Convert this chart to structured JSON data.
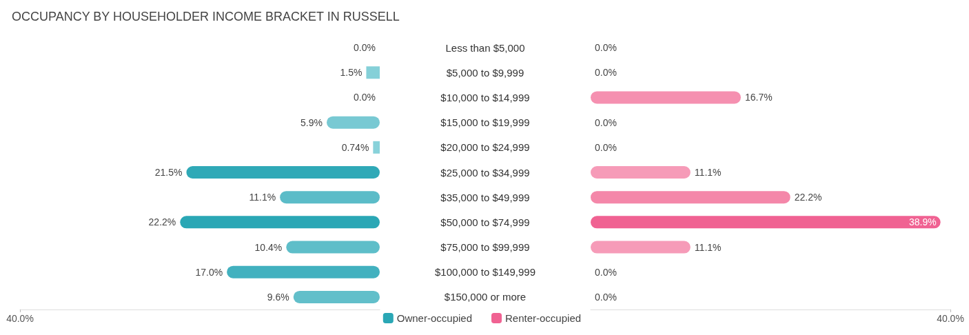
{
  "chart_data": [
    {
      "type": "bar",
      "orientation": "horizontal",
      "title": "OCCUPANCY BY HOUSEHOLDER INCOME BRACKET IN RUSSELL",
      "categories": [
        "Less than $5,000",
        "$5,000 to $9,999",
        "$10,000 to $14,999",
        "$15,000 to $19,999",
        "$20,000 to $24,999",
        "$25,000 to $34,999",
        "$35,000 to $49,999",
        "$50,000 to $74,999",
        "$75,000 to $99,999",
        "$100,000 to $149,999",
        "$150,000 or more"
      ],
      "series": [
        {
          "name": "Owner-occupied",
          "color": "#2aa7b5",
          "values": [
            0,
            1.5,
            0,
            5.9,
            0.74,
            21.5,
            11.1,
            22.2,
            10.4,
            17.0,
            9.6
          ],
          "value_labels": [
            "0.0%",
            "1.5%",
            "0.0%",
            "5.9%",
            "0.74%",
            "21.5%",
            "11.1%",
            "22.2%",
            "10.4%",
            "17.0%",
            "9.6%"
          ],
          "colors": [
            "#8ad3db",
            "#85d0d8",
            "#8ad3db",
            "#78c9d3",
            "#88d2da",
            "#2fa9b7",
            "#5bbcc8",
            "#2aa7b5",
            "#5ebec9",
            "#42b1bf",
            "#62bfca"
          ]
        }
      ],
      "xlim": [
        40,
        0
      ],
      "xticks": [
        {
          "value": 40,
          "label": "40.0%"
        }
      ],
      "legend": "bottom"
    },
    {
      "type": "bar",
      "orientation": "horizontal",
      "categories": [
        null,
        null,
        null,
        null,
        null,
        null,
        null,
        null,
        null,
        null,
        null
      ],
      "series": [
        {
          "name": "Renter-occupied",
          "color": "#f06292",
          "values": [
            0,
            0,
            16.7,
            0,
            0,
            11.1,
            22.2,
            38.9,
            11.1,
            0,
            0
          ],
          "value_labels": [
            "0.0%",
            "0.0%",
            "16.7%",
            "0.0%",
            "0.0%",
            "11.1%",
            "22.2%",
            "38.9%",
            "11.1%",
            "0.0%",
            "0.0%"
          ],
          "colors": [
            "#f8adc5",
            "#f8adc5",
            "#f590b0",
            "#f8adc5",
            "#f8adc5",
            "#f69bb8",
            "#f487a9",
            "#f06292",
            "#f69bb8",
            "#f8adc5",
            "#f8adc5"
          ]
        }
      ],
      "xlim": [
        0,
        40
      ],
      "xticks": [
        {
          "value": 40,
          "label": "40.0%"
        }
      ],
      "tick_labels": "x",
      "legend": "bottom"
    }
  ]
}
